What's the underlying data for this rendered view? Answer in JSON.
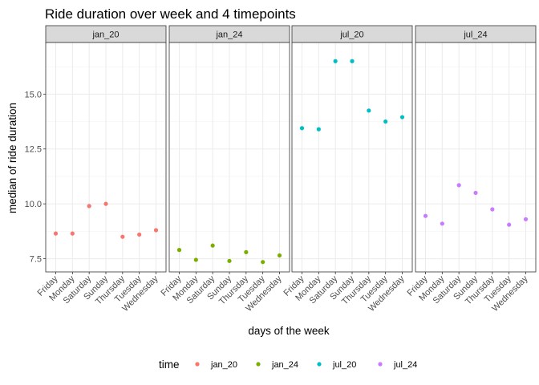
{
  "chart_data": {
    "type": "scatter",
    "title": "Ride duration over week and 4 timepoints",
    "xlabel": "days of the week",
    "ylabel": "median of ride duration",
    "ylim": [
      6.9,
      17.35
    ],
    "yticks": [
      7.5,
      10.0,
      12.5,
      15.0
    ],
    "ytick_labels": [
      "7.5",
      "10.0",
      "12.5",
      "15.0"
    ],
    "categories": [
      "Friday",
      "Monday",
      "Saturday",
      "Sunday",
      "Thursday",
      "Tuesday",
      "Wednesday"
    ],
    "legend_title": "time",
    "legend_position": "bottom",
    "series": [
      {
        "name": "jan_20",
        "color": "#F8766D",
        "values": [
          8.65,
          8.65,
          9.9,
          10.0,
          8.5,
          8.6,
          8.8
        ]
      },
      {
        "name": "jan_24",
        "color": "#7CAE00",
        "values": [
          7.9,
          7.45,
          8.1,
          7.4,
          7.8,
          7.35,
          7.65
        ]
      },
      {
        "name": "jul_20",
        "color": "#00BFC4",
        "values": [
          13.45,
          13.4,
          16.5,
          16.5,
          14.25,
          13.75,
          13.95
        ]
      },
      {
        "name": "jul_24",
        "color": "#C77CFF",
        "values": [
          9.45,
          9.1,
          10.85,
          10.5,
          9.75,
          9.05,
          9.3
        ]
      }
    ]
  }
}
